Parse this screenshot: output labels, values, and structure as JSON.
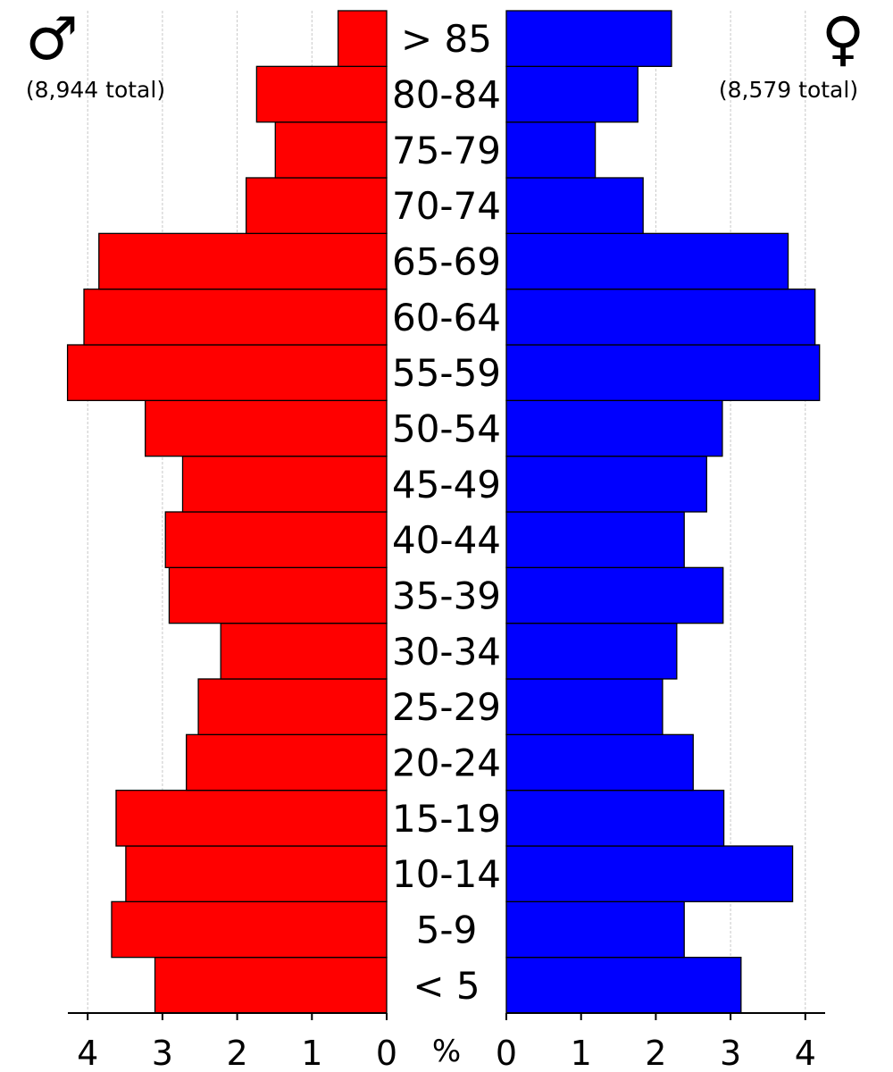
{
  "chart_data": {
    "type": "bar",
    "orientation": "horizontal",
    "categories": [
      "< 5",
      "5-9",
      "10-14",
      "15-19",
      "20-24",
      "25-29",
      "30-34",
      "35-39",
      "40-44",
      "45-49",
      "50-54",
      "55-59",
      "60-64",
      "65-69",
      "70-74",
      "75-79",
      "80-84",
      "> 85"
    ],
    "series": [
      {
        "symbol": "♂",
        "total_label": "(8,944 total)",
        "color": "#ff0000",
        "values": [
          3.1,
          3.68,
          3.49,
          3.62,
          2.68,
          2.52,
          2.22,
          2.91,
          2.96,
          2.73,
          3.23,
          4.27,
          4.05,
          3.85,
          1.88,
          1.49,
          1.74,
          0.65
        ]
      },
      {
        "symbol": "♀",
        "total_label": "(8,579 total)",
        "color": "#0000ff",
        "values": [
          3.14,
          2.38,
          3.83,
          2.91,
          2.5,
          2.09,
          2.28,
          2.9,
          2.38,
          2.68,
          2.89,
          4.19,
          4.13,
          3.77,
          1.83,
          1.19,
          1.76,
          2.21
        ]
      }
    ],
    "x_ticks": [
      "4",
      "3",
      "2",
      "1",
      "0",
      "%",
      "0",
      "1",
      "2",
      "3",
      "4"
    ],
    "xlim": [
      0,
      4.3
    ],
    "grid": true
  }
}
